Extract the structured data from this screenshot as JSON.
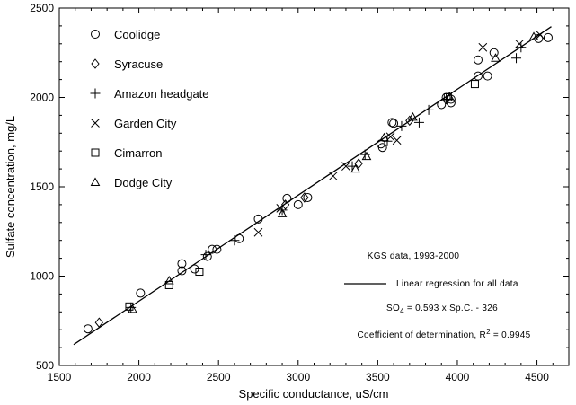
{
  "chart_data": {
    "type": "scatter",
    "xlabel": "Specific conductance, uS/cm",
    "ylabel": "Sulfate concentration, mg/L",
    "xlim": [
      1500,
      4700
    ],
    "ylim": [
      500,
      2500
    ],
    "xticks": [
      1500,
      2000,
      2500,
      3000,
      3500,
      4000,
      4500
    ],
    "yticks": [
      500,
      1000,
      1500,
      2000,
      2500
    ],
    "grid": false,
    "legend_position": "top-left",
    "series": [
      {
        "name": "Coolidge",
        "marker": "circle",
        "points": [
          [
            1680,
            705
          ],
          [
            2010,
            905
          ],
          [
            2270,
            1070
          ],
          [
            2270,
            1030
          ],
          [
            2350,
            1040
          ],
          [
            2430,
            1110
          ],
          [
            2460,
            1150
          ],
          [
            2490,
            1150
          ],
          [
            2630,
            1210
          ],
          [
            2750,
            1320
          ],
          [
            2930,
            1435
          ],
          [
            3000,
            1400
          ],
          [
            3060,
            1440
          ],
          [
            3520,
            1740
          ],
          [
            3530,
            1720
          ],
          [
            3590,
            1860
          ],
          [
            3600,
            1855
          ],
          [
            3900,
            1960
          ],
          [
            3930,
            2000
          ],
          [
            3960,
            1990
          ],
          [
            3960,
            1970
          ],
          [
            4130,
            2210
          ],
          [
            4130,
            2120
          ],
          [
            4190,
            2120
          ],
          [
            4230,
            2250
          ],
          [
            4510,
            2330
          ],
          [
            4570,
            2335
          ]
        ]
      },
      {
        "name": "Syracuse",
        "marker": "diamond",
        "points": [
          [
            1750,
            740
          ],
          [
            2920,
            1400
          ],
          [
            3040,
            1440
          ],
          [
            3380,
            1630
          ],
          [
            3700,
            1870
          ]
        ]
      },
      {
        "name": "Amazon headgate",
        "marker": "plus",
        "points": [
          [
            1950,
            825
          ],
          [
            2420,
            1120
          ],
          [
            2600,
            1200
          ],
          [
            2900,
            1370
          ],
          [
            3340,
            1615
          ],
          [
            3420,
            1680
          ],
          [
            3560,
            1755
          ],
          [
            3650,
            1840
          ],
          [
            3760,
            1860
          ],
          [
            3820,
            1930
          ],
          [
            3930,
            1990
          ],
          [
            4370,
            2220
          ],
          [
            4400,
            2280
          ]
        ]
      },
      {
        "name": "Garden City",
        "marker": "x",
        "points": [
          [
            2750,
            1245
          ],
          [
            2890,
            1380
          ],
          [
            3220,
            1560
          ],
          [
            3300,
            1615
          ],
          [
            3580,
            1780
          ],
          [
            3620,
            1760
          ],
          [
            4160,
            2280
          ],
          [
            4390,
            2300
          ],
          [
            4520,
            2350
          ]
        ]
      },
      {
        "name": "Cimarron",
        "marker": "square",
        "points": [
          [
            1940,
            830
          ],
          [
            2190,
            950
          ],
          [
            2380,
            1025
          ],
          [
            3940,
            2000
          ],
          [
            4110,
            2075
          ]
        ]
      },
      {
        "name": "Dodge City",
        "marker": "triangle",
        "points": [
          [
            1960,
            815
          ],
          [
            2190,
            975
          ],
          [
            2900,
            1350
          ],
          [
            3360,
            1600
          ],
          [
            3430,
            1670
          ],
          [
            3540,
            1775
          ],
          [
            3720,
            1890
          ],
          [
            3950,
            2005
          ],
          [
            4240,
            2220
          ],
          [
            4480,
            2340
          ]
        ]
      }
    ],
    "regression": {
      "name": "Linear regression for all data",
      "slope": 0.593,
      "intercept": -326,
      "x_range": [
        1590,
        4590
      ]
    },
    "annotations": {
      "source": "KGS data, 1993-2000",
      "legend_line_label": "Linear regression for all data",
      "equation_prefix": "SO",
      "equation_subscript": "4",
      "equation_suffix": " = 0.593 x Sp.C. - 326",
      "r2_prefix": "Coefficient of determination, R",
      "r2_superscript": "2",
      "r2_suffix": " = 0.9945"
    }
  }
}
